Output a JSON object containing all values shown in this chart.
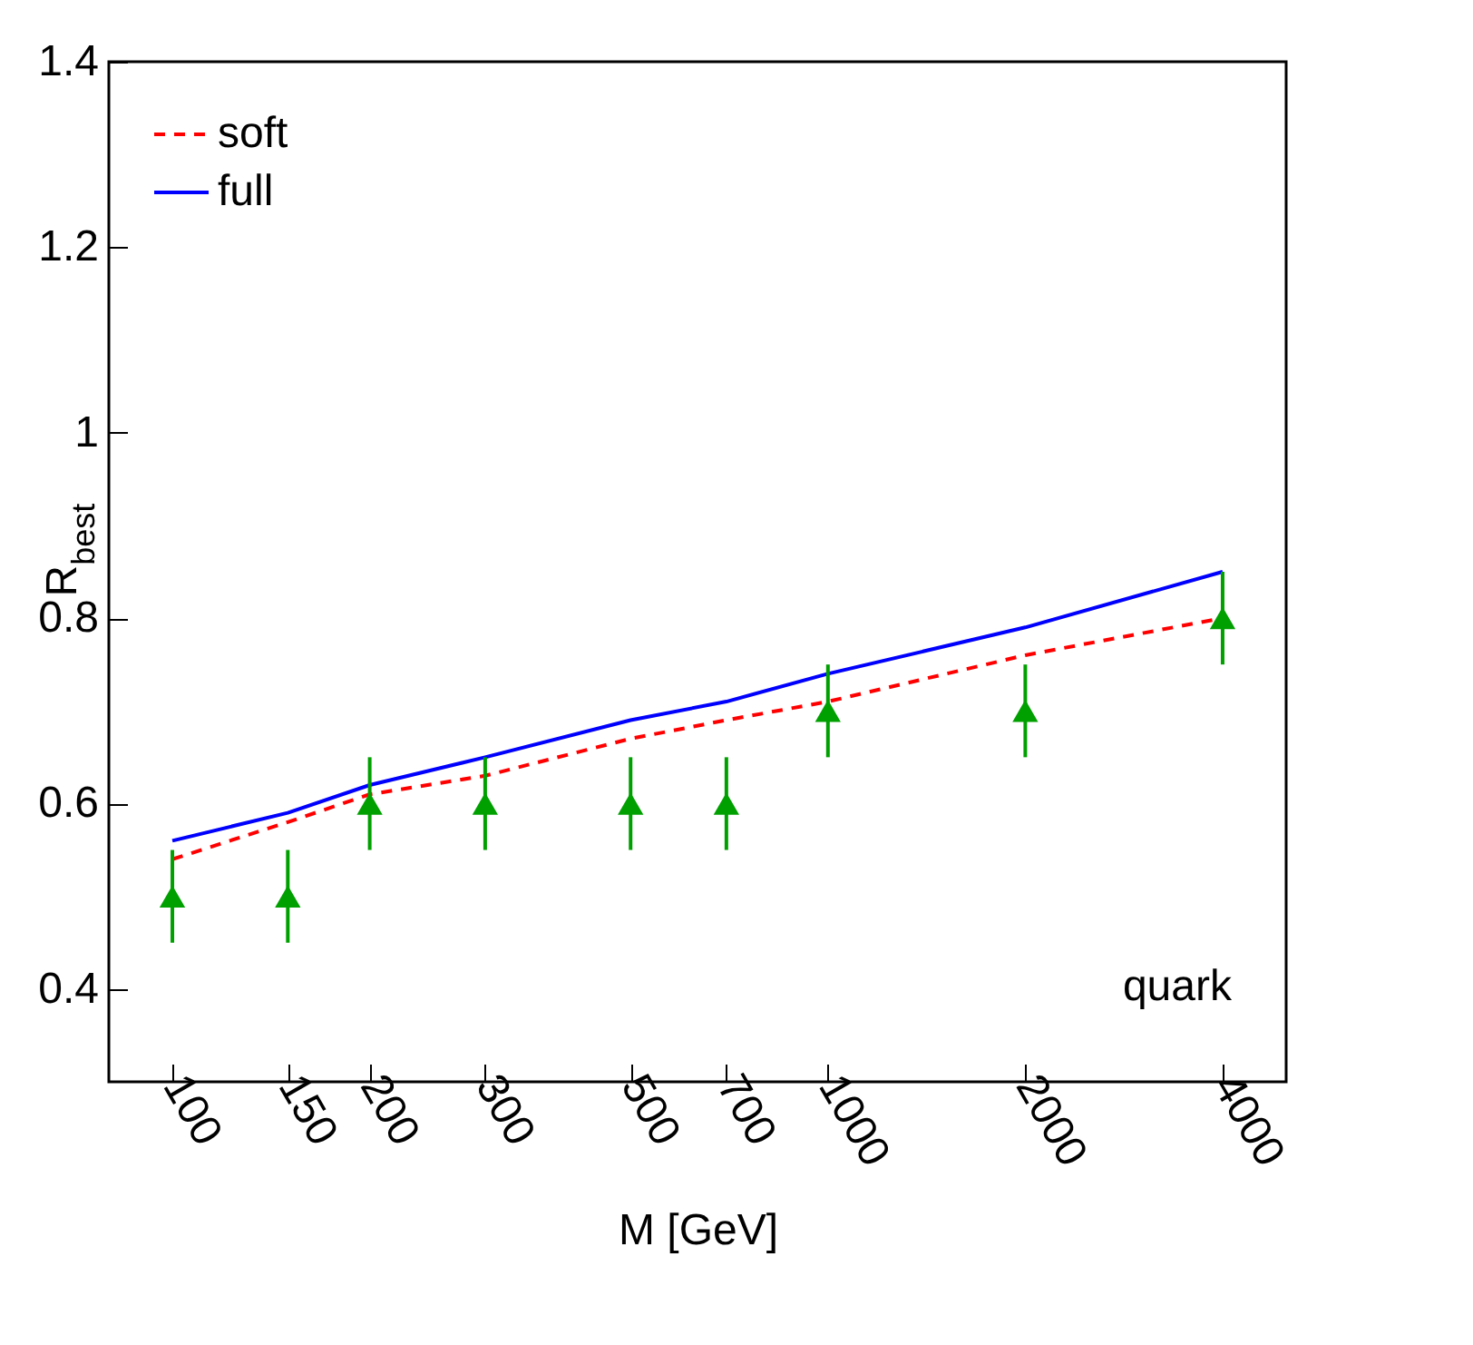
{
  "chart_data": {
    "type": "line",
    "xlabel": "M [GeV]",
    "ylabel": "R$_{best}$",
    "x": [
      100,
      150,
      200,
      300,
      500,
      700,
      1000,
      2000,
      4000
    ],
    "log": "x",
    "xlim": [
      80,
      5000
    ],
    "xticks": [
      100,
      150,
      200,
      300,
      500,
      700,
      1000,
      2000,
      4000
    ],
    "ylim": [
      0.3,
      1.4
    ],
    "yticks": [
      0.4,
      0.6,
      0.8,
      1,
      1.2,
      1.4
    ],
    "legend": "top left",
    "grid": false,
    "annotations": [
      "quark"
    ],
    "series": [
      {
        "name": "soft",
        "color": "#ff0000",
        "line_style": "dashed",
        "values": [
          0.54,
          0.58,
          0.61,
          0.63,
          0.67,
          0.69,
          0.71,
          0.76,
          0.8
        ]
      },
      {
        "name": "full",
        "color": "#0000ff",
        "line_style": "solid",
        "values": [
          0.56,
          0.59,
          0.62,
          0.65,
          0.69,
          0.71,
          0.74,
          0.79,
          0.85
        ]
      },
      {
        "type": "scatter",
        "color": "#00a000",
        "marker": "triangle",
        "values": [
          0.5,
          0.5,
          0.6,
          0.6,
          0.6,
          0.6,
          0.7,
          0.7,
          0.8
        ],
        "errors": [
          0.05,
          0.05,
          0.05,
          0.05,
          0.05,
          0.05,
          0.05,
          0.05,
          0.05
        ]
      }
    ]
  }
}
